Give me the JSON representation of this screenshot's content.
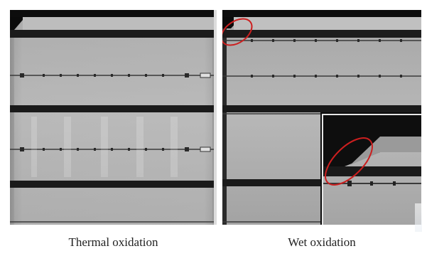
{
  "captions": {
    "left": "Thermal oxidation",
    "right": "Wet oxidation"
  },
  "colors": {
    "cell_bright": "#c8c8c8",
    "cell_mid": "#9e9e9e",
    "busbar_dark": "#1c1c1c",
    "highlight_ellipse": "#cc1f1f"
  }
}
